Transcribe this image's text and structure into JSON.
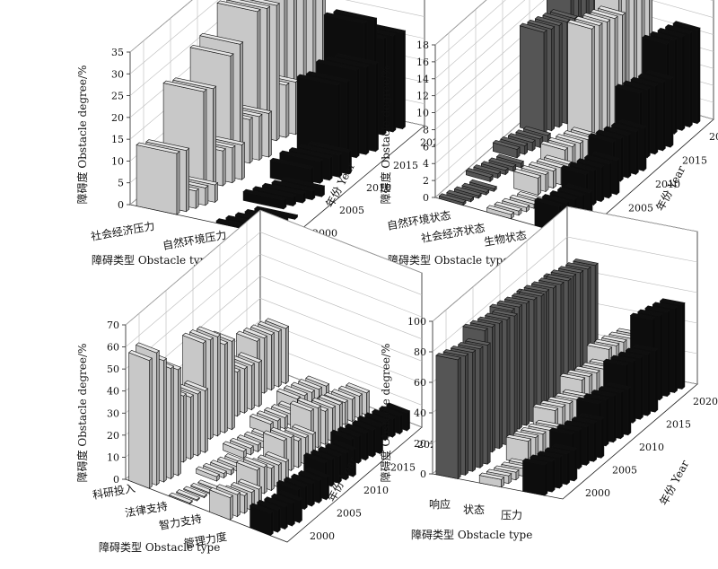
{
  "years": [
    "2000",
    "2005",
    "2010",
    "2015",
    "2020"
  ],
  "colors": {
    "light": "#c8c8c8",
    "dark": "#0d0d0d",
    "mid": "#555555"
  },
  "panels": [
    {
      "ylabel": "障碍度 Obstacle degree/%",
      "xlabel": "障碍类型 Obstacle type",
      "zlabel": "年份 Year",
      "yticks": [
        0,
        5,
        10,
        15,
        20,
        25,
        30,
        35
      ],
      "categories": [
        "社会经济压力",
        "自然环境压力"
      ]
    },
    {
      "ylabel": "障碍度 Obstacle degree/%",
      "xlabel": "障碍类型 Obstacle type",
      "zlabel": "年份 Year",
      "yticks": [
        0,
        2,
        4,
        6,
        8,
        10,
        12,
        14,
        16,
        18
      ],
      "categories": [
        "自然环境状态",
        "社会经济状态",
        "生物状态"
      ]
    },
    {
      "ylabel": "障碍度 Obstacle degree/%",
      "xlabel": "障碍类型 Obstacle type",
      "zlabel": "年份 Year",
      "yticks": [
        0,
        10,
        20,
        30,
        40,
        50,
        60,
        70
      ],
      "categories": [
        "科研投入",
        "法律支持",
        "智力支持",
        "管理力度"
      ]
    },
    {
      "ylabel": "障碍度 Obstacle degree/%",
      "xlabel": "障碍类型 Obstacle type",
      "zlabel": "年份 Year",
      "yticks": [
        0,
        20,
        40,
        60,
        80,
        100
      ],
      "categories": [
        "响应",
        "状态",
        "压力"
      ]
    }
  ],
  "chart_data": [
    {
      "type": "bar3d",
      "ylabel": "障碍度 Obstacle degree/%",
      "xlabel": "障碍类型 Obstacle type",
      "zlabel": "年份 Year",
      "ylim": [
        0,
        35
      ],
      "categories": [
        "社会经济压力",
        "自然环境压力"
      ],
      "z": [
        "2000",
        "2005",
        "2010",
        "2015",
        "2020"
      ],
      "series": [
        {
          "category": "社会经济压力",
          "color": "light",
          "values": [
            [
              14,
              14,
              4,
              4,
              4
            ],
            [
              23,
              23,
              8,
              8,
              8
            ],
            [
              26,
              28,
              10,
              10,
              10
            ],
            [
              31,
              31,
              31,
              12,
              12
            ],
            [
              33,
              30,
              28,
              28,
              28
            ]
          ]
        },
        {
          "category": "自然环境压力",
          "color": "dark",
          "values": [
            [
              0.5,
              0.5,
              0.5,
              0.5,
              0.5
            ],
            [
              2,
              2,
              2,
              2,
              2
            ],
            [
              4,
              5,
              5,
              5,
              5
            ],
            [
              18,
              18,
              20,
              20,
              20
            ],
            [
              27,
              27,
              22,
              22,
              22
            ]
          ]
        }
      ]
    },
    {
      "type": "bar3d",
      "ylabel": "障碍度 Obstacle degree/%",
      "xlabel": "障碍类型 Obstacle type",
      "zlabel": "年份 Year",
      "ylim": [
        0,
        18
      ],
      "categories": [
        "自然环境状态",
        "社会经济状态",
        "生物状态"
      ],
      "z": [
        "2000",
        "2005",
        "2010",
        "2015",
        "2020"
      ],
      "series": [
        {
          "category": "自然环境状态",
          "color": "mid",
          "values": [
            [
              0.3,
              0.3,
              0.3,
              0.3,
              0.3
            ],
            [
              0.5,
              0.5,
              0.5,
              0.5,
              0.5
            ],
            [
              1,
              1,
              1,
              1,
              1
            ],
            [
              12,
              12,
              12,
              12,
              12
            ],
            [
              16,
              16,
              16,
              16,
              16
            ]
          ]
        },
        {
          "category": "社会经济状态",
          "color": "light",
          "values": [
            [
              0.5,
              0.5,
              0.5,
              0.5,
              0.5
            ],
            [
              2,
              2,
              2,
              2,
              2
            ],
            [
              2.5,
              2.5,
              2.5,
              2.5,
              2.5
            ],
            [
              14,
              14,
              14,
              14,
              14
            ],
            [
              17,
              17,
              17,
              17,
              17
            ]
          ]
        },
        {
          "category": "生物状态",
          "color": "dark",
          "values": [
            [
              3,
              3,
              3,
              3,
              3
            ],
            [
              4,
              4,
              4,
              4,
              4
            ],
            [
              5,
              5,
              5,
              5,
              5
            ],
            [
              8,
              8,
              8,
              8,
              8
            ],
            [
              11,
              11,
              11,
              11,
              11
            ]
          ]
        }
      ]
    },
    {
      "type": "bar3d",
      "ylabel": "障碍度 Obstacle degree/%",
      "xlabel": "障碍类型 Obstacle type",
      "zlabel": "年份 Year",
      "ylim": [
        0,
        70
      ],
      "categories": [
        "科研投入",
        "法律支持",
        "智力支持",
        "管理力度"
      ],
      "z": [
        "2000",
        "2005",
        "2010",
        "2015",
        "2020"
      ],
      "series": [
        {
          "category": "科研投入",
          "color": "light",
          "values": [
            [
              58,
              60,
              55,
              50,
              48
            ],
            [
              30,
              30,
              28,
              28,
              28
            ],
            [
              45,
              45,
              45,
              40,
              40
            ],
            [
              20,
              20,
              20,
              20,
              20
            ],
            [
              25,
              25,
              25,
              25,
              25
            ]
          ]
        },
        {
          "category": "法律支持",
          "color": "light",
          "values": [
            [
              0.5,
              0.5,
              0.5,
              0.5,
              0.5
            ],
            [
              2,
              2,
              2,
              2,
              2
            ],
            [
              3,
              3,
              3,
              3,
              3
            ],
            [
              5,
              5,
              5,
              5,
              5
            ],
            [
              6,
              6,
              6,
              6,
              6
            ]
          ]
        },
        {
          "category": "智力支持",
          "color": "light",
          "values": [
            [
              10,
              10,
              8,
              8,
              8
            ],
            [
              12,
              12,
              10,
              10,
              10
            ],
            [
              15,
              15,
              12,
              12,
              12
            ],
            [
              18,
              18,
              15,
              15,
              15
            ],
            [
              10,
              10,
              10,
              10,
              10
            ]
          ]
        },
        {
          "category": "管理力度",
          "color": "dark",
          "values": [
            [
              10,
              10,
              10,
              10,
              10
            ],
            [
              10,
              10,
              10,
              10,
              10
            ],
            [
              12,
              12,
              12,
              12,
              12
            ],
            [
              12,
              12,
              12,
              12,
              12
            ],
            [
              8,
              8,
              8,
              8,
              8
            ]
          ]
        }
      ]
    },
    {
      "type": "bar3d",
      "ylabel": "障碍度 Obstacle degree/%",
      "xlabel": "障碍类型 Obstacle type",
      "zlabel": "年份 Year",
      "ylim": [
        0,
        100
      ],
      "categories": [
        "响应",
        "状态",
        "压力"
      ],
      "z": [
        "2000",
        "2005",
        "2010",
        "2015",
        "2020"
      ],
      "series": [
        {
          "category": "响应",
          "color": "mid",
          "values": [
            [
              78,
              78,
              78,
              78,
              78
            ],
            [
              82,
              82,
              82,
              82,
              82
            ],
            [
              80,
              80,
              80,
              80,
              80
            ],
            [
              75,
              75,
              75,
              75,
              75
            ],
            [
              70,
              70,
              70,
              70,
              70
            ]
          ]
        },
        {
          "category": "状态",
          "color": "light",
          "values": [
            [
              5,
              5,
              5,
              5,
              5
            ],
            [
              15,
              15,
              15,
              15,
              15
            ],
            [
              20,
              20,
              20,
              20,
              20
            ],
            [
              25,
              25,
              25,
              25,
              25
            ],
            [
              30,
              30,
              30,
              30,
              30
            ]
          ]
        },
        {
          "category": "压力",
          "color": "dark",
          "values": [
            [
              20,
              20,
              20,
              20,
              20
            ],
            [
              25,
              25,
              25,
              25,
              25
            ],
            [
              30,
              30,
              30,
              30,
              30
            ],
            [
              40,
              40,
              40,
              40,
              40
            ],
            [
              55,
              55,
              55,
              55,
              55
            ]
          ]
        }
      ]
    }
  ]
}
